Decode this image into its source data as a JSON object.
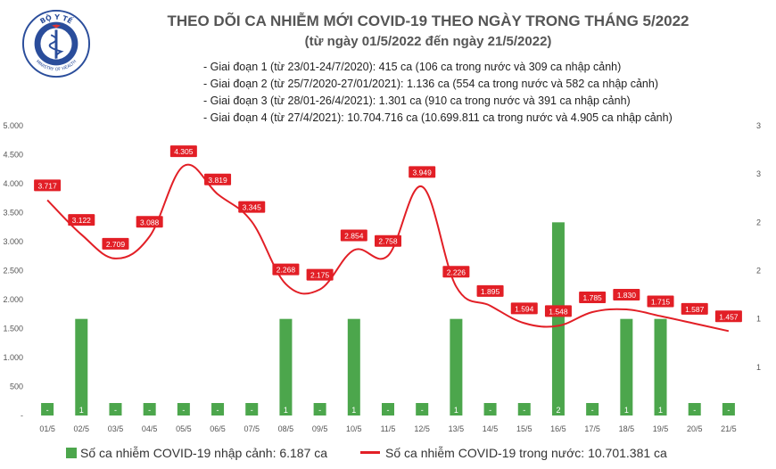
{
  "header": {
    "title": "THEO DÕI CA NHIỄM MỚI COVID-19 THEO NGÀY TRONG THÁNG 5/2022",
    "subtitle": "(từ ngày 01/5/2022 đến ngày 21/5/2022)"
  },
  "logo": {
    "top_text": "BỘ Y TẾ",
    "bottom_text": "MINISTRY OF HEALTH"
  },
  "phases": [
    "- Giai đoạn 1 (từ 23/01-24/7/2020): 415 ca (106 ca trong nước và 309 ca nhập cảnh)",
    "- Giai đoạn 2 (từ 25/7/2020-27/01/2021): 1.136 ca (554 ca trong nước và 582 ca nhập cảnh)",
    "- Giai đoạn 3 (từ 28/01-26/4/2021): 1.301 ca (910 ca trong nước và 391 ca nhập cảnh)",
    "- Giai đoạn 4 (từ 27/4/2021): 10.704.716 ca (10.699.811 ca trong nước và 4.905 ca nhập cảnh)"
  ],
  "legend": {
    "bar_label": "Số ca nhiễm COVID-19 nhập cảnh: 6.187 ca",
    "line_label": "Số ca nhiễm COVID-19 trong nước: 10.701.381 ca"
  },
  "colors": {
    "bar": "#4ca64c",
    "line": "#e21f26",
    "label_bg": "#e21f26",
    "axis_text": "#555555",
    "title": "#555555"
  },
  "chart_data": {
    "type": "bar+line",
    "categories": [
      "01/5",
      "02/5",
      "03/5",
      "04/5",
      "05/5",
      "06/5",
      "07/5",
      "08/5",
      "09/5",
      "10/5",
      "11/5",
      "12/5",
      "13/5",
      "14/5",
      "15/5",
      "16/5",
      "17/5",
      "18/5",
      "19/5",
      "20/5",
      "21/5"
    ],
    "series": [
      {
        "name": "Số ca nhiễm COVID-19 nhập cảnh: 6.187 ca",
        "type": "bar",
        "axis": "right",
        "values": [
          0,
          1,
          0,
          0,
          0,
          0,
          0,
          1,
          0,
          1,
          0,
          0,
          1,
          0,
          0,
          2,
          0,
          1,
          1,
          0,
          0
        ],
        "labels": [
          "-",
          "1",
          "-",
          "-",
          "-",
          "-",
          "-",
          "1",
          "-",
          "1",
          "-",
          "-",
          "1",
          "-",
          "-",
          "2",
          "-",
          "1",
          "1",
          "-",
          "-"
        ]
      },
      {
        "name": "Số ca nhiễm COVID-19 trong nước: 10.701.381 ca",
        "type": "line",
        "axis": "left",
        "values": [
          3717,
          3122,
          2709,
          3088,
          4305,
          3819,
          3345,
          2268,
          2175,
          2854,
          2758,
          3949,
          2226,
          1895,
          1594,
          1548,
          1785,
          1830,
          1715,
          1587,
          1457
        ],
        "labels": [
          "3.717",
          "3.122",
          "2.709",
          "3.088",
          "4.305",
          "3.819",
          "3.345",
          "2.268",
          "2.175",
          "2.854",
          "2.758",
          "3.949",
          "2.226",
          "1.895",
          "1.594",
          "1.548",
          "1.785",
          "1.830",
          "1.715",
          "1.587",
          "1.457"
        ]
      }
    ],
    "y_left": {
      "lim": [
        0,
        5000
      ],
      "ticks": [
        0,
        500,
        1000,
        1500,
        2000,
        2500,
        3000,
        3500,
        4000,
        4500,
        5000
      ],
      "tick_labels": [
        "-",
        "500",
        "1.000",
        "1.500",
        "2.000",
        "2.500",
        "3.000",
        "3.500",
        "4.000",
        "4.500",
        "5.000"
      ]
    },
    "y_right": {
      "lim": [
        0,
        3
      ],
      "ticks": [
        0.5,
        1,
        1.5,
        2,
        2.5,
        3
      ],
      "tick_labels": [
        "1",
        "1",
        "2",
        "2",
        "3",
        "3"
      ]
    },
    "grid": false,
    "legend_position": "bottom"
  }
}
